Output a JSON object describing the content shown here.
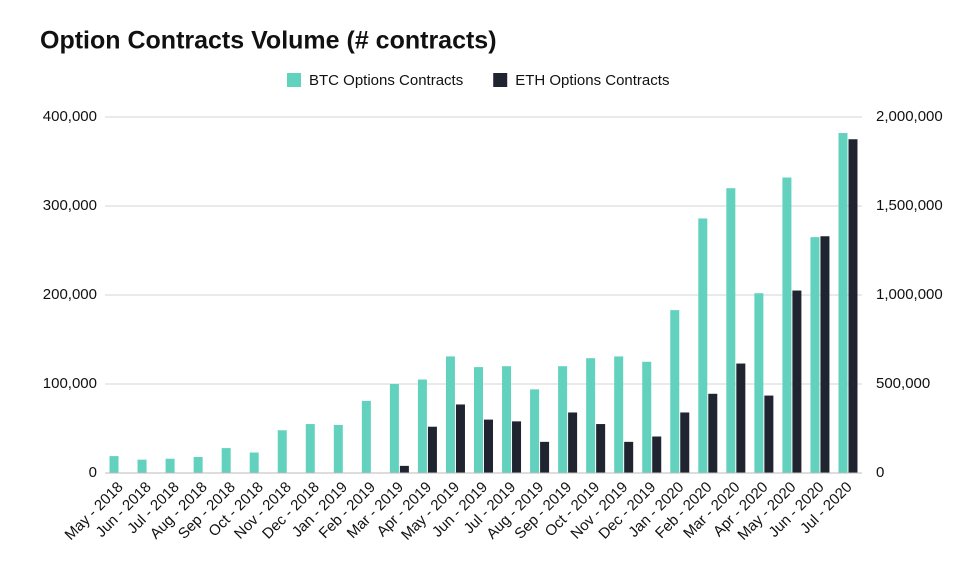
{
  "chart_data": {
    "type": "bar",
    "title": "Option Contracts Volume (# contracts)",
    "categories": [
      "May - 2018",
      "Jun - 2018",
      "Jul - 2018",
      "Aug - 2018",
      "Sep - 2018",
      "Oct - 2018",
      "Nov - 2018",
      "Dec - 2018",
      "Jan - 2019",
      "Feb - 2019",
      "Mar - 2019",
      "Apr - 2019",
      "May - 2019",
      "Jun - 2019",
      "Jul - 2019",
      "Aug - 2019",
      "Sep - 2019",
      "Oct - 2019",
      "Nov - 2019",
      "Dec - 2019",
      "Jan - 2020",
      "Feb - 2020",
      "Mar - 2020",
      "Apr - 2020",
      "May - 2020",
      "Jun - 2020",
      "Jul - 2020"
    ],
    "series": [
      {
        "name": "BTC Options Contracts",
        "color": "#62d2bf",
        "values": [
          19000,
          15000,
          16000,
          18000,
          28000,
          23000,
          48000,
          55000,
          54000,
          81000,
          100000,
          105000,
          131000,
          119000,
          120000,
          94000,
          120000,
          129000,
          131000,
          125000,
          183000,
          286000,
          320000,
          202000,
          332000,
          265000,
          382000
        ]
      },
      {
        "name": "ETH Options Contracts",
        "color": "#1f2430",
        "axis": "y2",
        "values": [
          null,
          null,
          null,
          null,
          null,
          null,
          null,
          null,
          null,
          null,
          40000,
          260000,
          385000,
          300000,
          290000,
          175000,
          340000,
          275000,
          175000,
          205000,
          340000,
          445000,
          615000,
          435000,
          1025000,
          1330000,
          1875000
        ]
      }
    ],
    "ylim": [
      0,
      400000
    ],
    "yticks": [
      0,
      {
        "value": 100000,
        "label": "100,000"
      },
      {
        "value": 200000,
        "label": "200,000"
      },
      {
        "value": 300000,
        "label": "300,000"
      },
      {
        "value": 400000,
        "label": "400,000"
      }
    ],
    "y2lim": [
      0,
      2000000
    ],
    "y2ticks": [
      0,
      {
        "value": 500000,
        "label": "500,000"
      },
      {
        "value": 1000000,
        "label": "1,000,000"
      },
      {
        "value": 1500000,
        "label": "1,500,000"
      },
      {
        "value": 2000000,
        "label": "2,000,000"
      }
    ],
    "grid": true,
    "legend": "top"
  }
}
